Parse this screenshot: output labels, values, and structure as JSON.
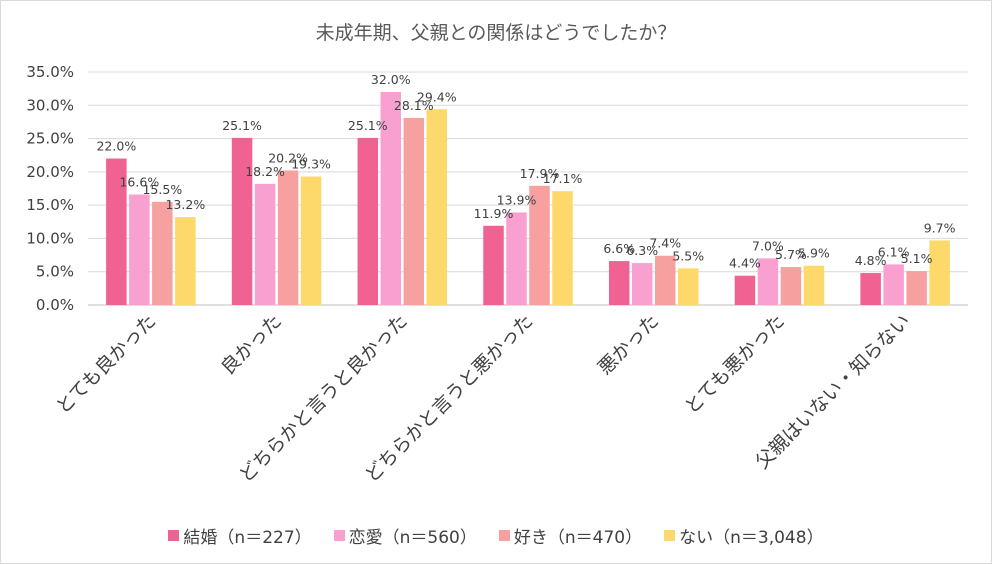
{
  "chart_data": {
    "type": "bar",
    "title": "未成年期、父親との関係はどうでしたか？",
    "categories": [
      "とても良かった",
      "良かった",
      "どちらかと言うと良かった",
      "どちらかと言うと悪かった",
      "悪かった",
      "とても悪かった",
      "父親はいない・知らない"
    ],
    "series": [
      {
        "name": "結婚（n＝227）",
        "color": "#f06292",
        "values": [
          22.0,
          25.1,
          25.1,
          11.9,
          6.6,
          4.4,
          4.8
        ]
      },
      {
        "name": "恋愛（n＝560）",
        "color": "#f8a1d1",
        "values": [
          16.6,
          18.2,
          32.0,
          13.9,
          6.3,
          7.0,
          6.1
        ]
      },
      {
        "name": "好き（n＝470）",
        "color": "#f7a0a0",
        "values": [
          15.5,
          20.2,
          28.1,
          17.9,
          7.4,
          5.7,
          5.1
        ]
      },
      {
        "name": "ない（n＝3,048）",
        "color": "#fdd86a",
        "values": [
          13.2,
          19.3,
          29.4,
          17.1,
          5.5,
          5.9,
          9.7
        ]
      }
    ],
    "y_ticks": [
      "0.0%",
      "5.0%",
      "10.0%",
      "15.0%",
      "20.0%",
      "25.0%",
      "30.0%",
      "35.0%"
    ],
    "ylim": [
      0,
      35
    ],
    "grid": true,
    "legend": "bottom",
    "value_suffix": "%"
  }
}
